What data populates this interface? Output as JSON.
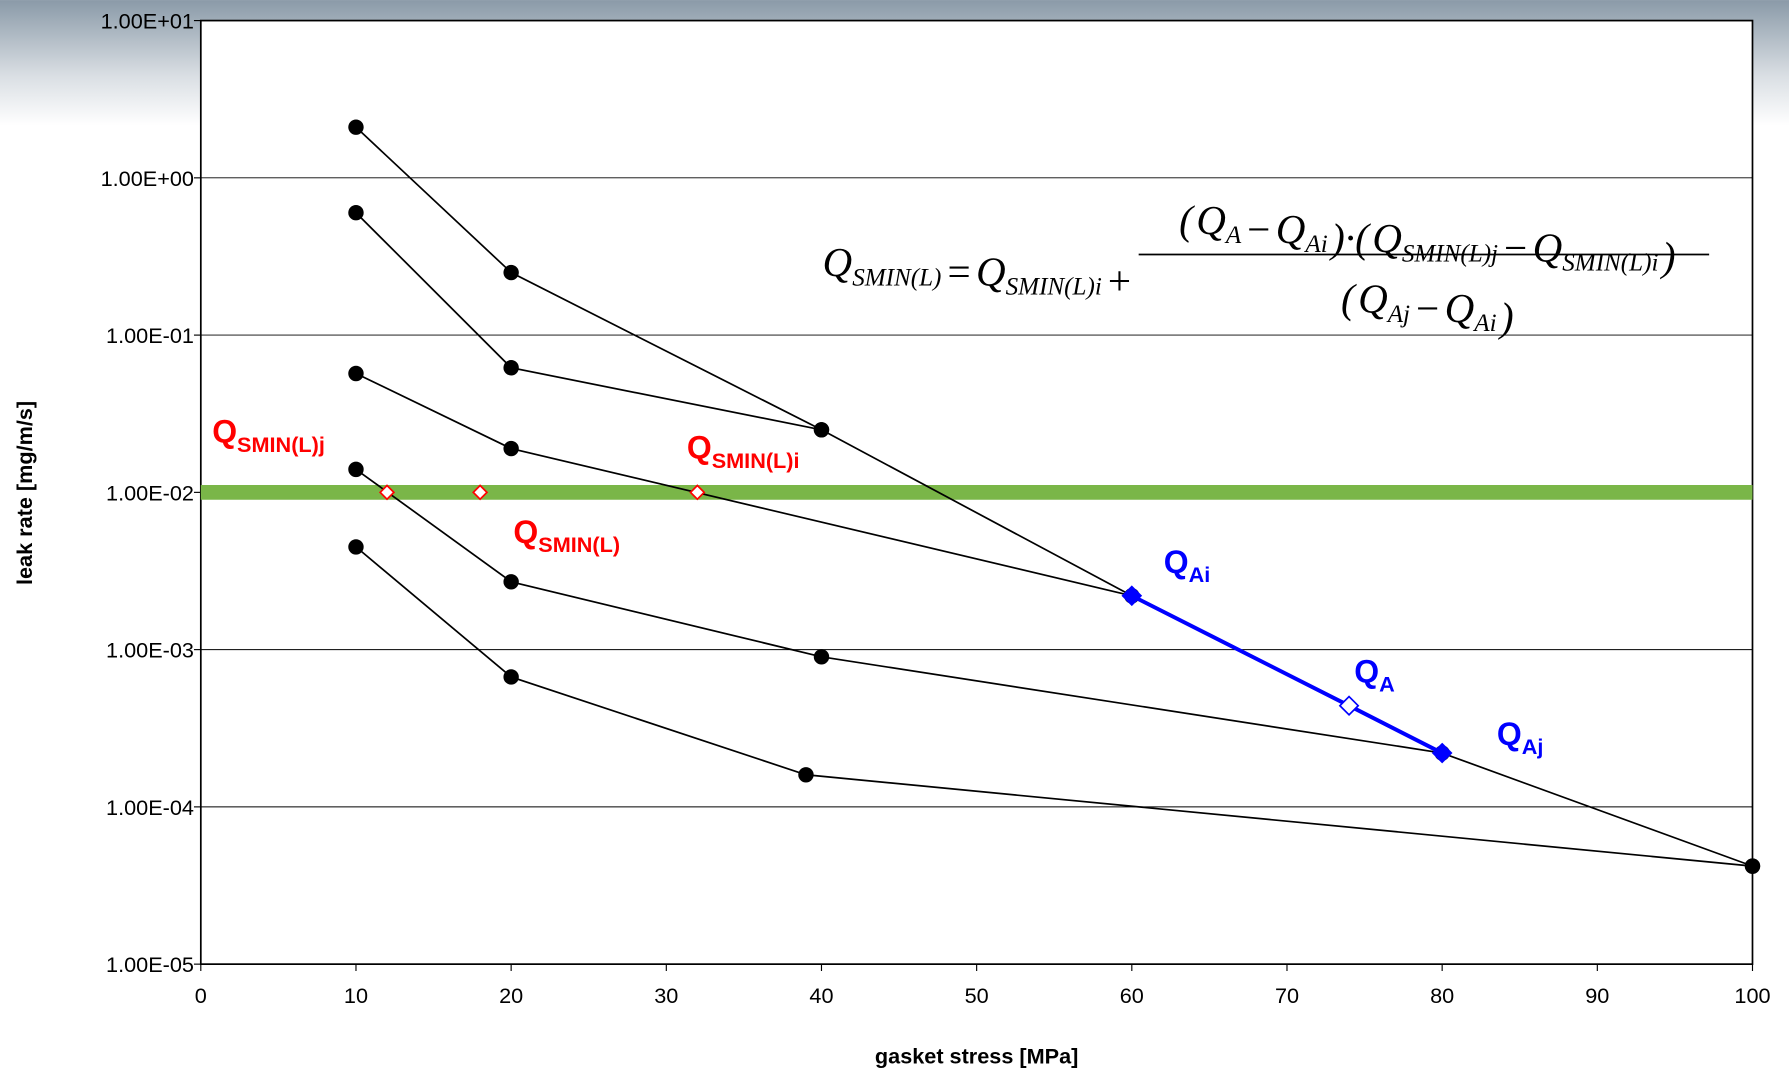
{
  "chart_data": {
    "type": "line",
    "y_scale": "log",
    "grid": true,
    "xlabel": "gasket stress [MPa]",
    "ylabel": "leak rate [mg/m/s]",
    "xlim": [
      0,
      100
    ],
    "xticks": [
      0,
      10,
      20,
      30,
      40,
      50,
      60,
      70,
      80,
      90,
      100
    ],
    "ylim": [
      1e-05,
      10
    ],
    "yticks": [
      {
        "value": 1e-05,
        "label": "1.00E-05"
      },
      {
        "value": 0.0001,
        "label": "1.00E-04"
      },
      {
        "value": 0.001,
        "label": "1.00E-03"
      },
      {
        "value": 0.01,
        "label": "1.00E-02"
      },
      {
        "value": 0.1,
        "label": "1.00E-01"
      },
      {
        "value": 1,
        "label": "1.00E+00"
      },
      {
        "value": 10,
        "label": "1.00E+01"
      }
    ],
    "threshold": {
      "value": 0.01,
      "color": "#7ab648"
    },
    "series": [
      {
        "x": [
          10,
          20,
          40,
          60
        ],
        "values": [
          2.1,
          0.25,
          0.025,
          0.0022
        ],
        "color": "#000000",
        "marker": "circle",
        "marker_fill": "#000000"
      },
      {
        "x": [
          10,
          20,
          40
        ],
        "values": [
          0.6,
          0.062,
          0.025
        ],
        "color": "#000000",
        "marker": "circle",
        "marker_fill": "#000000"
      },
      {
        "x": [
          10,
          20,
          60
        ],
        "values": [
          0.057,
          0.019,
          0.0022
        ],
        "color": "#000000",
        "marker": "circle",
        "marker_fill": "#000000"
      },
      {
        "x": [
          10,
          20,
          40,
          80,
          100
        ],
        "values": [
          0.014,
          0.0027,
          0.0009,
          0.00022,
          4.2e-05
        ],
        "color": "#000000",
        "marker": "circle",
        "marker_fill": "#000000"
      },
      {
        "x": [
          10,
          20,
          39,
          100
        ],
        "values": [
          0.0045,
          0.00067,
          0.00016,
          4.2e-05
        ],
        "color": "#000000",
        "marker": "circle",
        "marker_fill": "#000000"
      },
      {
        "x": [
          60,
          74,
          80
        ],
        "values": [
          0.0022,
          0.00044,
          0.00022
        ],
        "color": "#0000ff",
        "marker": "diamond",
        "marker_fill": [
          "#0000ff",
          "#ffffff",
          "#0000ff"
        ]
      },
      {
        "x": [
          12,
          18,
          32
        ],
        "values": [
          0.01,
          0.01,
          0.01
        ],
        "color": "#ff0000",
        "marker": "diamond",
        "marker_fill": "#ffffff",
        "line": false
      }
    ],
    "annotations": [
      {
        "base": "Q",
        "sub": "SMIN(L)j",
        "color": "#ff0000"
      },
      {
        "base": "Q",
        "sub": "SMIN(L)i",
        "color": "#ff0000"
      },
      {
        "base": "Q",
        "sub": "SMIN(L)",
        "color": "#ff0000"
      },
      {
        "base": "Q",
        "sub": "Ai",
        "color": "#0000ff"
      },
      {
        "base": "Q",
        "sub": "A",
        "color": "#0000ff"
      },
      {
        "base": "Q",
        "sub": "Aj",
        "color": "#0000ff"
      }
    ],
    "formula": {
      "lhs": [
        {
          "base": "Q",
          "sub": "SMIN(L)"
        },
        {
          "base": "="
        },
        {
          "base": "Q",
          "sub": "SMIN(L)i"
        },
        {
          "base": "+"
        }
      ],
      "numerator": [
        {
          "base": "("
        },
        {
          "base": "Q",
          "sub": "A"
        },
        {
          "base": "−"
        },
        {
          "base": "Q",
          "sub": "Ai"
        },
        {
          "base": ")·("
        },
        {
          "base": "Q",
          "sub": "SMIN(L)j"
        },
        {
          "base": "−"
        },
        {
          "base": "Q",
          "sub": "SMIN(L)i"
        },
        {
          "base": ")"
        }
      ],
      "denominator": [
        {
          "base": "("
        },
        {
          "base": "Q",
          "sub": "Aj"
        },
        {
          "base": "−"
        },
        {
          "base": "Q",
          "sub": "Ai"
        },
        {
          "base": ")"
        }
      ]
    }
  }
}
